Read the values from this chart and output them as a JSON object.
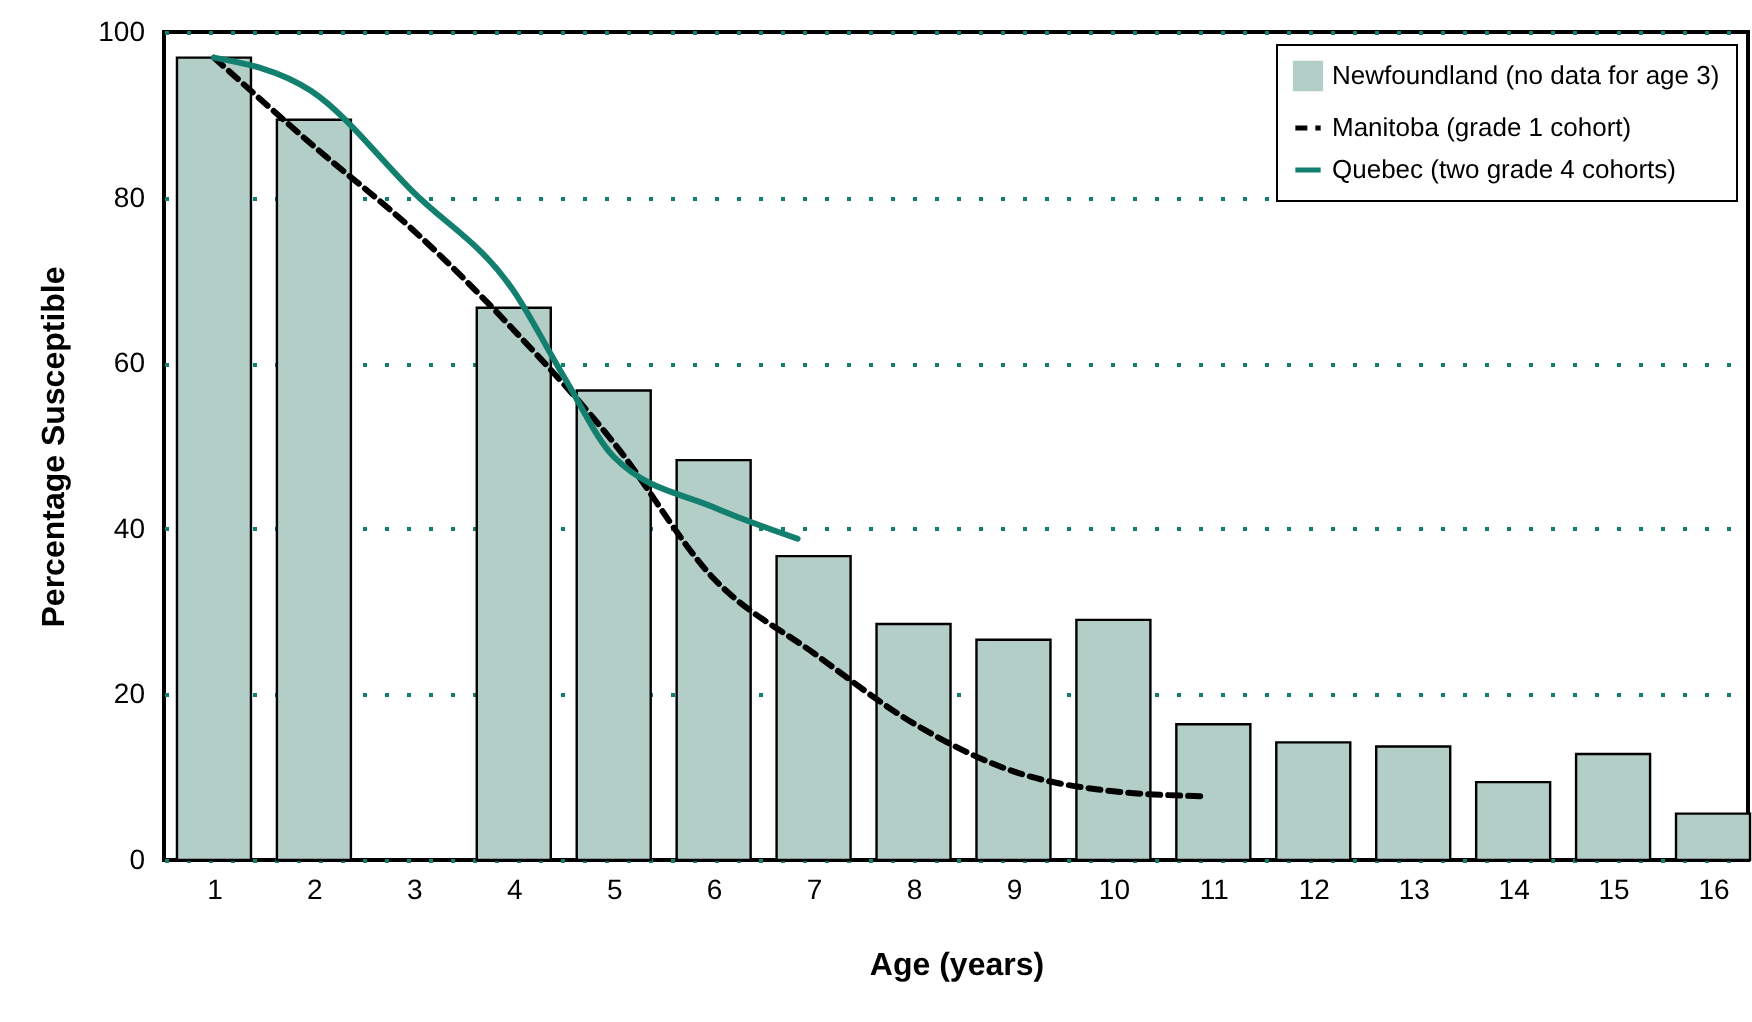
{
  "chart_data": {
    "type": "bar",
    "xlabel": "Age (years)",
    "ylabel": "Percentage Susceptible",
    "x": [
      1,
      2,
      3,
      4,
      5,
      6,
      7,
      8,
      9,
      10,
      11,
      12,
      13,
      14,
      15,
      16
    ],
    "series": [
      {
        "name": "Newfoundland (no data for age 3)",
        "color": "#b3cdc7",
        "values": [
          96.9,
          89.4,
          null,
          66.7,
          56.7,
          48.3,
          36.7,
          28.5,
          26.6,
          29,
          16.4,
          14.2,
          13.7,
          9.4,
          12.8,
          5.6
        ]
      },
      {
        "name": "Manitoba (grade 1 cohort)",
        "type": "line",
        "color": "#000000",
        "line_style": "dashed",
        "x": [
          1,
          2,
          3,
          4,
          5,
          6,
          7,
          8,
          9,
          10,
          10.9
        ],
        "values": [
          96.9,
          86.2,
          76,
          64,
          50.4,
          34,
          25,
          16.5,
          10.7,
          8.3,
          7.7
        ]
      },
      {
        "name": "Quebec (two grade 4 cohorts)",
        "type": "line",
        "color": "#127f6f",
        "line_style": "solid",
        "x": [
          1,
          1.97,
          3,
          4,
          4.5,
          5,
          6,
          6.84
        ],
        "values": [
          96.9,
          92.9,
          80.6,
          68.7,
          58.4,
          48.7,
          42.6,
          38.8
        ]
      }
    ],
    "xlim": [
      0.5,
      16.35
    ],
    "xticks": [
      1,
      2,
      3,
      4,
      5,
      6,
      7,
      8,
      9,
      10,
      11,
      12,
      13,
      14,
      15,
      16
    ],
    "ylim": [
      0,
      100
    ],
    "yticks": [
      0,
      20,
      40,
      60,
      80,
      100
    ],
    "grid": "y",
    "legend": "top right"
  }
}
